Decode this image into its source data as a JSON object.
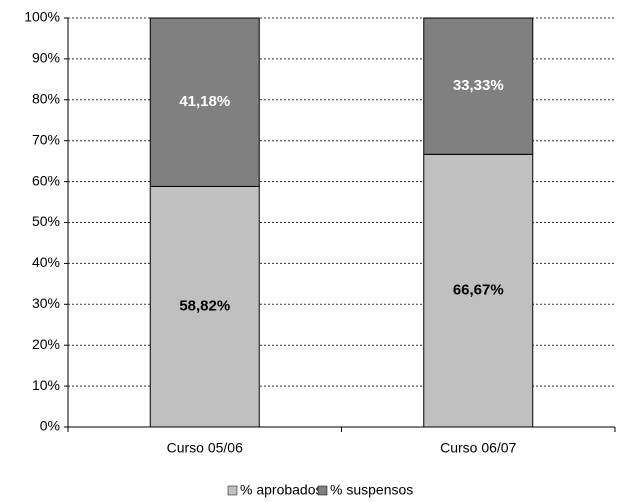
{
  "chart_data": {
    "type": "stacked_bar",
    "categories": [
      "Curso 05/06",
      "Curso 06/07"
    ],
    "series": [
      {
        "name": "% aprobados",
        "color": "#c0c0c0",
        "values": [
          58.82,
          66.67
        ],
        "value_labels": [
          "58,82%",
          "66,67%"
        ]
      },
      {
        "name": "% suspensos",
        "color": "#808080",
        "values": [
          41.18,
          33.33
        ],
        "value_labels": [
          "41,18%",
          "33,33%"
        ]
      }
    ],
    "ylim": [
      0,
      100
    ],
    "yticks": [
      {
        "value": 0,
        "label": "0%"
      },
      {
        "value": 10,
        "label": "10%"
      },
      {
        "value": 20,
        "label": "20%"
      },
      {
        "value": 30,
        "label": "30%"
      },
      {
        "value": 40,
        "label": "40%"
      },
      {
        "value": 50,
        "label": "50%"
      },
      {
        "value": 60,
        "label": "60%"
      },
      {
        "value": 70,
        "label": "70%"
      },
      {
        "value": 80,
        "label": "80%"
      },
      {
        "value": 90,
        "label": "90%"
      },
      {
        "value": 100,
        "label": "100%"
      }
    ],
    "grid": true,
    "legend": "bottom"
  }
}
